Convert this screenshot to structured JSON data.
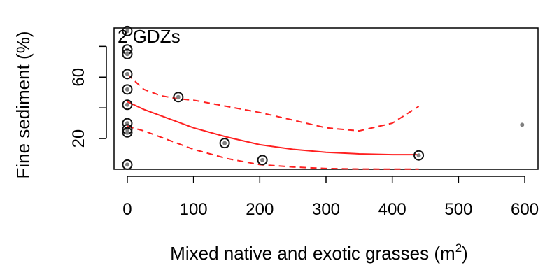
{
  "chart_data": {
    "type": "scatter",
    "annotation": "2 GDZs",
    "xlabel": "Mixed native and exotic grasses (m",
    "xlabel_sup": "2",
    "xlabel_end": ")",
    "ylabel": "Fine sediment (%)",
    "xlim": [
      -20,
      620
    ],
    "ylim": [
      0,
      92
    ],
    "x_ticks": [
      0,
      100,
      200,
      300,
      400,
      500,
      600
    ],
    "y_ticks": [
      20,
      60
    ],
    "y_minor_ticks": [
      40,
      80
    ],
    "grid": false,
    "points_circled": [
      {
        "x": 0,
        "y": 90
      },
      {
        "x": 0,
        "y": 78
      },
      {
        "x": 0,
        "y": 75
      },
      {
        "x": 0,
        "y": 62
      },
      {
        "x": 0,
        "y": 52
      },
      {
        "x": 0,
        "y": 42
      },
      {
        "x": 0,
        "y": 30
      },
      {
        "x": 0,
        "y": 26
      },
      {
        "x": 0,
        "y": 24
      },
      {
        "x": 0,
        "y": 3
      },
      {
        "x": 77,
        "y": 47
      },
      {
        "x": 147,
        "y": 17
      },
      {
        "x": 204,
        "y": 6
      },
      {
        "x": 440,
        "y": 9
      }
    ],
    "points_plain": [
      {
        "x": 596,
        "y": 29
      }
    ],
    "fit": {
      "color": "#ff2020",
      "x": [
        0,
        25,
        50,
        75,
        100,
        150,
        200,
        250,
        300,
        350,
        400,
        440
      ],
      "y": [
        44,
        39,
        35,
        31,
        27,
        21,
        16,
        13,
        11,
        10,
        9.5,
        9.5
      ]
    },
    "upper_band": {
      "color": "#ff2020",
      "x": [
        0,
        25,
        50,
        75,
        100,
        150,
        200,
        250,
        300,
        350,
        400,
        440
      ],
      "y": [
        62,
        52,
        48,
        46,
        45,
        41,
        37,
        32,
        27,
        25,
        30,
        41
      ]
    },
    "lower_band": {
      "color": "#ff2020",
      "x": [
        0,
        25,
        50,
        75,
        100,
        150,
        200,
        250,
        300,
        350,
        400,
        440
      ],
      "y": [
        28,
        25,
        21,
        17,
        13,
        7,
        3,
        1.5,
        0.5,
        0.2,
        0.1,
        0.1
      ]
    }
  }
}
